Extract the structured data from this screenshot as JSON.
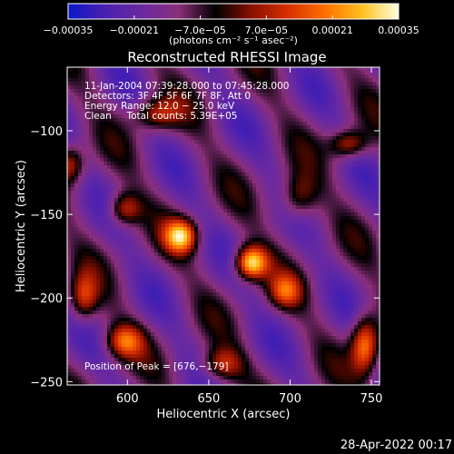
{
  "chart_data": {
    "type": "heatmap",
    "title": "Reconstructed RHESSI Image",
    "xlabel": "Heliocentric X (arcsec)",
    "ylabel": "Heliocentric Y (arcsec)",
    "xlim": [
      563,
      755
    ],
    "ylim": [
      -252,
      -62
    ],
    "x_ticks": [
      600,
      650,
      700,
      750
    ],
    "y_ticks": [
      -100,
      -150,
      -200,
      -250
    ],
    "x_tick_labels": [
      "600",
      "650",
      "700",
      "750"
    ],
    "y_tick_labels": [
      "−100",
      "−150",
      "−200",
      "−250"
    ],
    "colorbar": {
      "range": [
        -0.00035,
        0.00035
      ],
      "ticks": [
        -0.00035,
        -0.00021,
        -7e-05,
        7e-05,
        0.00021,
        0.00035
      ],
      "tick_labels": [
        "−0.00035",
        "−0.00021",
        "−7.0e−05",
        "7.0e−05",
        "0.00021",
        "0.00035"
      ],
      "units_label": "(photons cm⁻² s⁻¹ asec⁻²)",
      "colors": [
        "#0b16c8",
        "#4a20b0",
        "#6a2aa0",
        "#8a2f7a",
        "#000000",
        "#8a1000",
        "#d83000",
        "#ff7000",
        "#ffc020",
        "#ffffe0"
      ]
    },
    "annotations": [
      "11‑Jan‑2004 07:39:28.000 to 07:45:28.000",
      "Detectors: 3F 4F 5F 6F 7F 8F, Att 0",
      "Energy Range: 12.0 − 25.0 keV",
      "Clean     Total counts: 5.39E+05"
    ],
    "peak_label": "Position of Peak = [676,−179]",
    "peak_position": [
      676,
      -179
    ],
    "timestamp": "28‑Apr‑2022 00:17"
  }
}
